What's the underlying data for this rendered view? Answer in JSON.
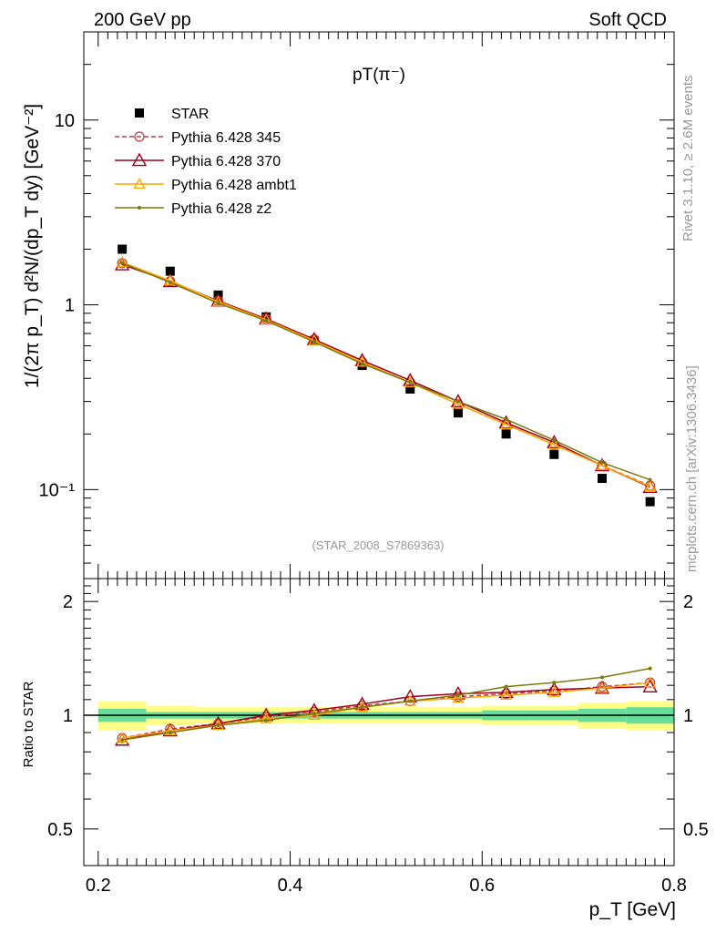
{
  "header": {
    "left": "200 GeV pp",
    "right": "Soft QCD"
  },
  "side_text": {
    "rivet": "Rivet 3.1.10, ≥ 2.6M events",
    "mcplots": "mcplots.cern.ch [arXiv:1306.3436]"
  },
  "chart_data": [
    {
      "type": "scatter",
      "title": "pT(π⁻)",
      "analysis_label": "(STAR_2008_S7869363)",
      "xlabel": "p_T [GeV]",
      "ylabel": "1/(2π p_T) d²N/(dp_T dy) [GeV⁻²]",
      "xlim": [
        0.185,
        0.8
      ],
      "ylim": [
        0.033,
        30
      ],
      "yscale": "log",
      "y_tick_labels": [
        "10⁻¹",
        "1",
        "10"
      ],
      "x": [
        0.225,
        0.275,
        0.325,
        0.375,
        0.425,
        0.475,
        0.525,
        0.575,
        0.625,
        0.675,
        0.725,
        0.775
      ],
      "legend_position": "top-left",
      "series": [
        {
          "name": "STAR",
          "style": "data",
          "color": "#000000",
          "values": [
            2.0,
            1.52,
            1.13,
            0.86,
            0.64,
            0.47,
            0.35,
            0.26,
            0.2,
            0.155,
            0.115,
            0.086
          ]
        },
        {
          "name": "Pythia 6.428 345",
          "style": "dashed-circle",
          "color": "#c0404a",
          "values": [
            1.68,
            1.34,
            1.05,
            0.84,
            0.65,
            0.49,
            0.38,
            0.29,
            0.225,
            0.175,
            0.135,
            0.105
          ]
        },
        {
          "name": "Pythia 6.428 370",
          "style": "solid-triangle",
          "color": "#a0001a",
          "values": [
            1.65,
            1.34,
            1.05,
            0.84,
            0.65,
            0.5,
            0.39,
            0.3,
            0.23,
            0.18,
            0.135,
            0.103
          ]
        },
        {
          "name": "Pythia 6.428 ambt1",
          "style": "solid-triangle-open",
          "color": "#ffa500",
          "values": [
            1.7,
            1.35,
            1.04,
            0.83,
            0.64,
            0.49,
            0.38,
            0.29,
            0.225,
            0.175,
            0.135,
            0.104
          ]
        },
        {
          "name": "Pythia 6.428 z2",
          "style": "solid-dot",
          "color": "#7a7a10",
          "values": [
            1.68,
            1.32,
            1.02,
            0.82,
            0.63,
            0.48,
            0.38,
            0.3,
            0.24,
            0.185,
            0.14,
            0.113
          ]
        }
      ]
    },
    {
      "type": "line",
      "ylabel": "Ratio to STAR",
      "xlabel": "p_T [GeV]",
      "xlim": [
        0.185,
        0.8
      ],
      "ylim": [
        0.4,
        2.3
      ],
      "yscale": "log",
      "x_ticks": [
        0.2,
        0.4,
        0.6,
        0.8
      ],
      "x_tick_labels": [
        "0.2",
        "0.4",
        "0.6",
        "0.8"
      ],
      "y_ticks": [
        0.5,
        1,
        2
      ],
      "y_tick_labels": [
        "0.5",
        "1",
        "2"
      ],
      "x": [
        0.225,
        0.275,
        0.325,
        0.375,
        0.425,
        0.475,
        0.525,
        0.575,
        0.625,
        0.675,
        0.725,
        0.775
      ],
      "uncertainty_band": {
        "bins": [
          [
            0.2,
            0.25
          ],
          [
            0.25,
            0.3
          ],
          [
            0.3,
            0.35
          ],
          [
            0.35,
            0.4
          ],
          [
            0.4,
            0.45
          ],
          [
            0.45,
            0.5
          ],
          [
            0.5,
            0.55
          ],
          [
            0.55,
            0.6
          ],
          [
            0.6,
            0.65
          ],
          [
            0.65,
            0.7
          ],
          [
            0.7,
            0.75
          ],
          [
            0.75,
            0.8
          ]
        ],
        "stat_half": [
          0.04,
          0.02,
          0.02,
          0.02,
          0.02,
          0.02,
          0.02,
          0.02,
          0.03,
          0.03,
          0.04,
          0.05
        ],
        "total_half": [
          0.09,
          0.06,
          0.05,
          0.05,
          0.05,
          0.05,
          0.05,
          0.05,
          0.06,
          0.06,
          0.08,
          0.09
        ],
        "stat_color": "#66dd99",
        "total_color": "#ffff88"
      },
      "series": [
        {
          "name": "Pythia 6.428 345",
          "color": "#c0404a",
          "values": [
            0.87,
            0.92,
            0.95,
            0.99,
            1.02,
            1.06,
            1.09,
            1.12,
            1.14,
            1.16,
            1.19,
            1.22
          ]
        },
        {
          "name": "Pythia 6.428 370",
          "color": "#a0001a",
          "values": [
            0.86,
            0.91,
            0.95,
            1.0,
            1.03,
            1.07,
            1.12,
            1.14,
            1.15,
            1.17,
            1.18,
            1.19
          ]
        },
        {
          "name": "Pythia 6.428 ambt1",
          "color": "#ffa500",
          "values": [
            0.87,
            0.91,
            0.94,
            0.98,
            1.0,
            1.05,
            1.09,
            1.11,
            1.13,
            1.15,
            1.18,
            1.22
          ]
        },
        {
          "name": "Pythia 6.428 z2",
          "color": "#7a7a10",
          "values": [
            0.86,
            0.9,
            0.94,
            0.97,
            1.01,
            1.05,
            1.09,
            1.13,
            1.19,
            1.22,
            1.26,
            1.33
          ]
        }
      ]
    }
  ]
}
